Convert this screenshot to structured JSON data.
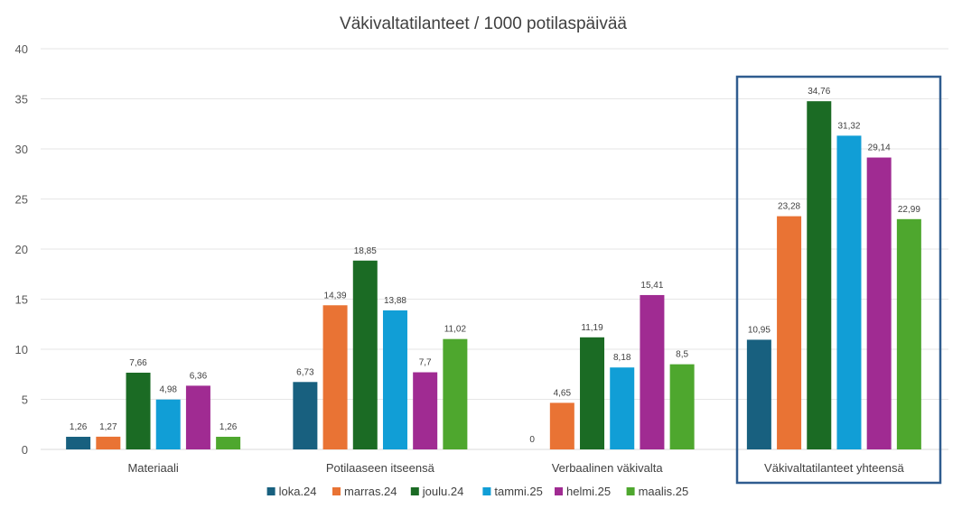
{
  "chart_data": {
    "type": "bar",
    "title": "Väkivaltatilanteet / 1000 potilaspäivää",
    "xlabel": "",
    "ylabel": "",
    "ylim": [
      0,
      40
    ],
    "yticks": [
      0,
      5,
      10,
      15,
      20,
      25,
      30,
      35,
      40
    ],
    "grid": true,
    "legend_position": "bottom",
    "categories": [
      "Materiaali",
      "Potilaaseen itseensä",
      "Verbaalinen väkivalta",
      "Väkivaltatilanteet yhteensä"
    ],
    "highlighted_category": "Väkivaltatilanteet yhteensä",
    "series": [
      {
        "name": "loka.24",
        "color": "#18607f",
        "values": [
          1.26,
          6.73,
          0,
          10.95
        ],
        "labels": [
          "1,26",
          "6,73",
          "0",
          "10,95"
        ]
      },
      {
        "name": "marras.24",
        "color": "#e97334",
        "values": [
          1.27,
          14.39,
          4.65,
          23.28
        ],
        "labels": [
          "1,27",
          "14,39",
          "4,65",
          "23,28"
        ]
      },
      {
        "name": "joulu.24",
        "color": "#1b6b24",
        "values": [
          7.66,
          18.85,
          11.19,
          34.76
        ],
        "labels": [
          "7,66",
          "18,85",
          "11,19",
          "34,76"
        ]
      },
      {
        "name": "tammi.25",
        "color": "#119ed6",
        "values": [
          4.98,
          13.88,
          8.18,
          31.32
        ],
        "labels": [
          "4,98",
          "13,88",
          "8,18",
          "31,32"
        ]
      },
      {
        "name": "helmi.25",
        "color": "#a02b92",
        "values": [
          6.36,
          7.7,
          15.41,
          29.14
        ],
        "labels": [
          "6,36",
          "7,7",
          "15,41",
          "29,14"
        ]
      },
      {
        "name": "maalis.25",
        "color": "#4ea72e",
        "values": [
          1.26,
          11.02,
          8.5,
          22.99
        ],
        "labels": [
          "1,26",
          "11,02",
          "8,5",
          "22,99"
        ]
      }
    ],
    "highlight_color": "#2f5c8f"
  }
}
